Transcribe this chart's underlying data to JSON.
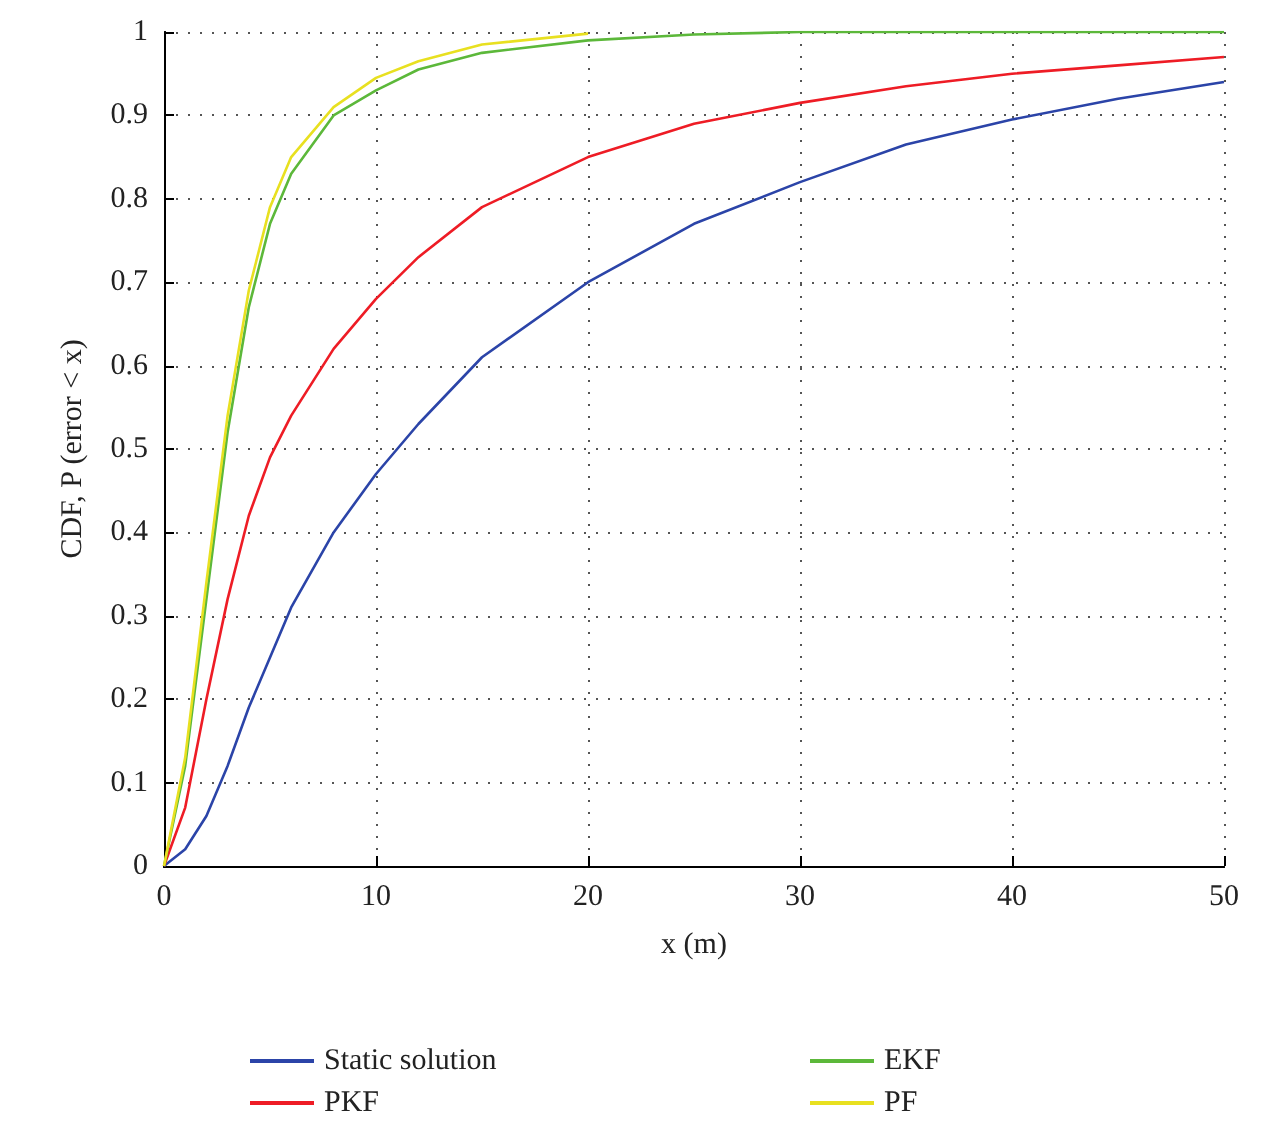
{
  "chart_data": {
    "type": "line",
    "xlabel": "x (m)",
    "ylabel": "CDF, P (error < x)",
    "xlim": [
      0,
      50
    ],
    "xticks": [
      0,
      10,
      20,
      30,
      40,
      50
    ],
    "ylim": [
      0,
      1
    ],
    "yticks": [
      0,
      0.1,
      0.2,
      0.3,
      0.4,
      0.5,
      0.6,
      0.7,
      0.8,
      0.9,
      1
    ],
    "grid": true,
    "legend": "bottom",
    "marker": "none",
    "line_style": "solid",
    "x": [
      0,
      1,
      2,
      3,
      4,
      5,
      6,
      8,
      10,
      12,
      15,
      20,
      25,
      30,
      35,
      40,
      45,
      50
    ],
    "series": [
      {
        "name": "Static solution",
        "color": "#2b44a8",
        "values": [
          0,
          0.02,
          0.06,
          0.12,
          0.19,
          0.25,
          0.31,
          0.4,
          0.47,
          0.53,
          0.61,
          0.7,
          0.77,
          0.82,
          0.865,
          0.895,
          0.92,
          0.94
        ]
      },
      {
        "name": "PKF",
        "color": "#ee1c25",
        "values": [
          0,
          0.07,
          0.2,
          0.32,
          0.42,
          0.49,
          0.54,
          0.62,
          0.68,
          0.73,
          0.79,
          0.85,
          0.89,
          0.915,
          0.935,
          0.95,
          0.96,
          0.97
        ]
      },
      {
        "name": "EKF",
        "color": "#5cb83a",
        "values": [
          0,
          0.12,
          0.32,
          0.52,
          0.67,
          0.77,
          0.83,
          0.9,
          0.93,
          0.955,
          0.975,
          0.99,
          0.997,
          1,
          1,
          1,
          1,
          1
        ]
      },
      {
        "name": "PF",
        "color": "#e8e020",
        "values": [
          0,
          0.13,
          0.34,
          0.54,
          0.69,
          0.79,
          0.85,
          0.91,
          0.945,
          0.965,
          0.985,
          0.998,
          null,
          null,
          null,
          null,
          null,
          null
        ]
      }
    ]
  }
}
